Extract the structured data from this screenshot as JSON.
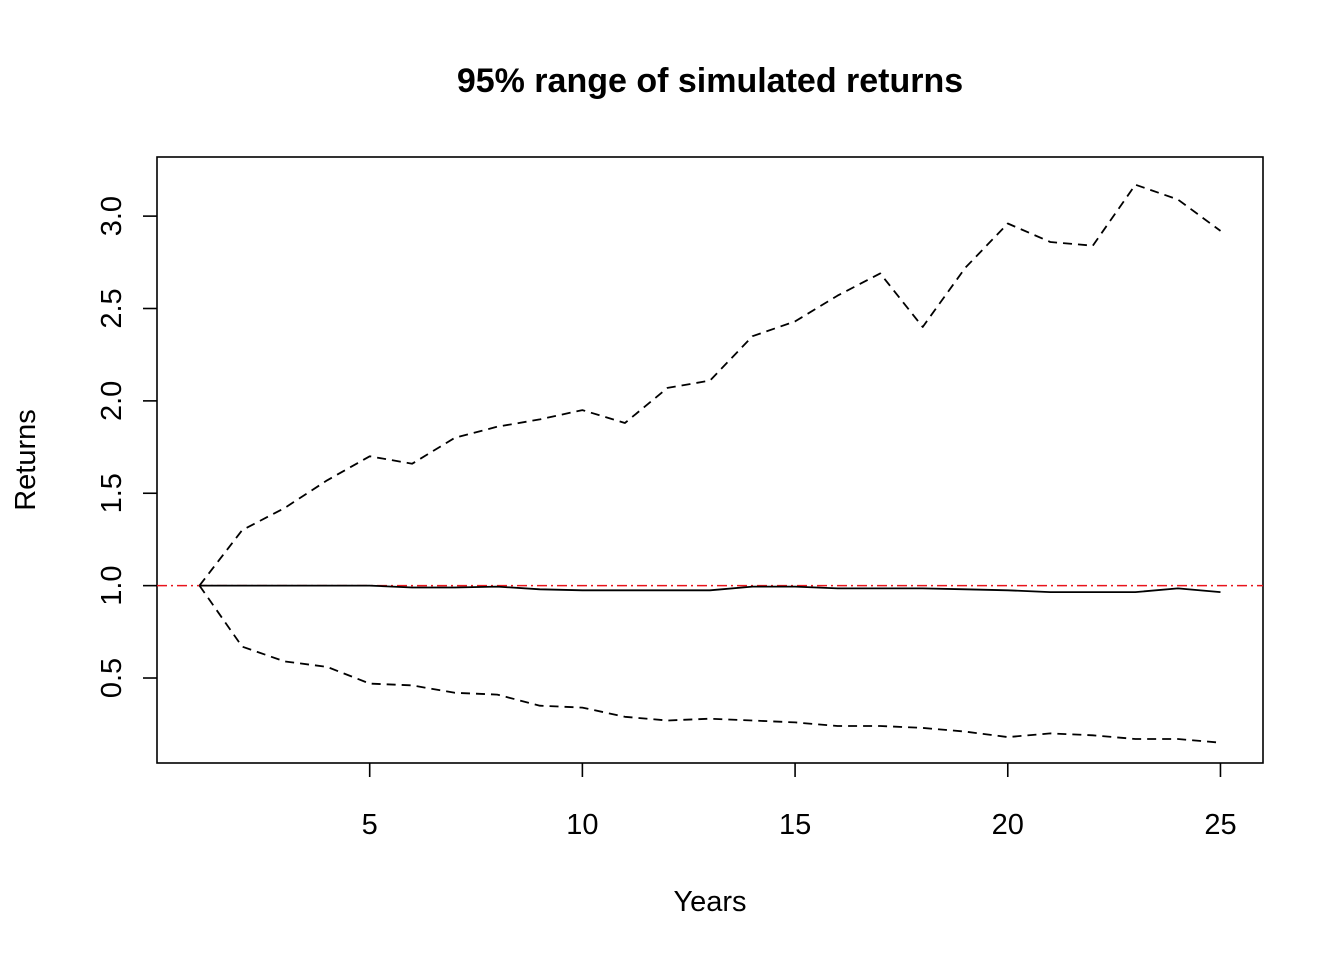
{
  "chart_data": {
    "type": "line",
    "title": "95% range of simulated returns",
    "xlabel": "Years",
    "ylabel": "Returns",
    "xlim": [
      0,
      26
    ],
    "ylim": [
      0.04,
      3.32
    ],
    "xticks": [
      5,
      10,
      15,
      20,
      25
    ],
    "xtick_labels": [
      "5",
      "10",
      "15",
      "20",
      "25"
    ],
    "yticks": [
      0.5,
      1.0,
      1.5,
      2.0,
      2.5,
      3.0
    ],
    "ytick_labels": [
      "0.5",
      "1.0",
      "1.5",
      "2.0",
      "2.5",
      "3.0"
    ],
    "grid": false,
    "x": [
      1,
      2,
      3,
      4,
      5,
      6,
      7,
      8,
      9,
      10,
      11,
      12,
      13,
      14,
      15,
      16,
      17,
      18,
      19,
      20,
      21,
      22,
      23,
      24,
      25
    ],
    "series": [
      {
        "style": "dashed",
        "color": "#000000",
        "values": [
          1.0,
          1.3,
          1.42,
          1.57,
          1.7,
          1.66,
          1.8,
          1.86,
          1.9,
          1.95,
          1.88,
          2.07,
          2.11,
          2.35,
          2.43,
          2.57,
          2.69,
          2.4,
          2.72,
          2.96,
          2.86,
          2.84,
          3.17,
          3.09,
          2.92
        ]
      },
      {
        "style": "solid",
        "color": "#000000",
        "values": [
          1.0,
          1.0,
          1.0,
          1.0,
          1.0,
          0.99,
          0.99,
          0.995,
          0.98,
          0.975,
          0.975,
          0.975,
          0.975,
          0.995,
          0.995,
          0.985,
          0.985,
          0.985,
          0.98,
          0.975,
          0.965,
          0.965,
          0.965,
          0.985,
          0.965
        ]
      },
      {
        "style": "dashed",
        "color": "#000000",
        "values": [
          1.0,
          0.67,
          0.59,
          0.56,
          0.47,
          0.46,
          0.42,
          0.41,
          0.35,
          0.34,
          0.29,
          0.27,
          0.28,
          0.27,
          0.26,
          0.24,
          0.24,
          0.23,
          0.21,
          0.18,
          0.2,
          0.19,
          0.17,
          0.17,
          0.15
        ]
      }
    ],
    "reference_line": {
      "y": 1.0,
      "color": "#e8141c",
      "style": "dot-dash"
    }
  }
}
